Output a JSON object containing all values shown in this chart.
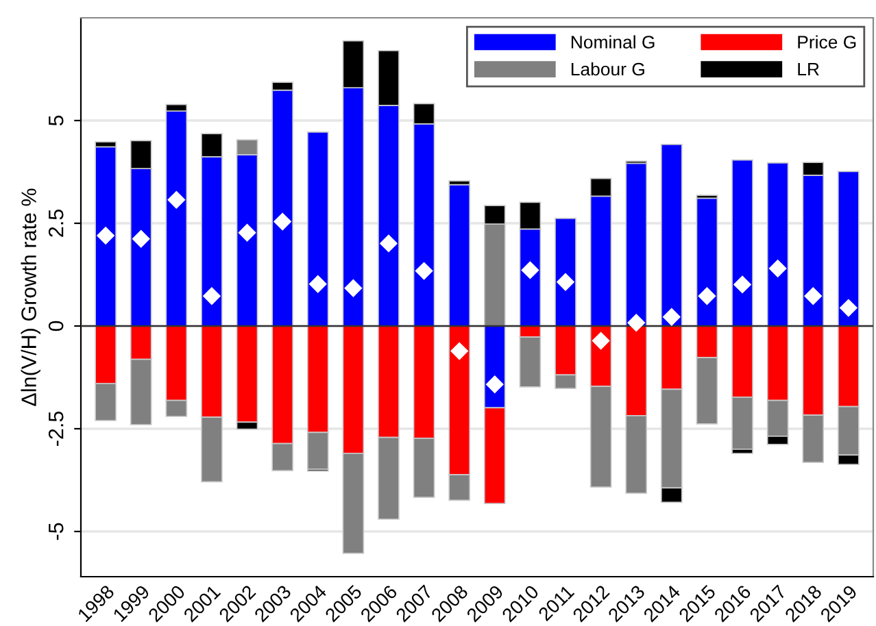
{
  "chart_data": {
    "type": "bar",
    "stacked": true,
    "ylabel": "Δln(V/H) Growth rate %",
    "categories": [
      "1998",
      "1999",
      "2000",
      "2001",
      "2002",
      "2003",
      "2004",
      "2005",
      "2006",
      "2007",
      "2008",
      "2009",
      "2010",
      "2011",
      "2012",
      "2013",
      "2014",
      "2015",
      "2016",
      "2017",
      "2018",
      "2019"
    ],
    "series": [
      {
        "name": "Nominal G",
        "color": "#0000ff",
        "values": [
          4.36,
          3.83,
          5.23,
          4.12,
          4.17,
          5.74,
          4.72,
          5.8,
          5.37,
          4.92,
          3.44,
          -1.99,
          2.36,
          2.62,
          3.16,
          3.96,
          4.42,
          3.11,
          4.04,
          3.97,
          3.67,
          3.76
        ]
      },
      {
        "name": "Price G",
        "color": "#ff0000",
        "values": [
          -1.4,
          -0.81,
          -1.81,
          -2.22,
          -2.34,
          -2.86,
          -2.59,
          -3.1,
          -2.71,
          -2.73,
          -3.62,
          -2.33,
          -0.27,
          -1.19,
          -1.47,
          -2.18,
          -1.54,
          -0.77,
          -1.73,
          -1.81,
          -2.17,
          -1.96
        ]
      },
      {
        "name": "Labour G",
        "color": "#808080",
        "values": [
          -0.9,
          -1.59,
          -0.39,
          -1.57,
          0.36,
          -0.66,
          -0.9,
          -2.43,
          -1.99,
          -1.44,
          -0.62,
          2.48,
          -1.21,
          -0.33,
          -2.45,
          -1.89,
          -2.4,
          -1.61,
          -1.27,
          -0.87,
          -1.15,
          -1.18
        ]
      },
      {
        "name": "LR",
        "color": "#000000",
        "values": [
          0.12,
          0.68,
          0.16,
          0.56,
          -0.17,
          0.19,
          -0.04,
          1.14,
          1.33,
          0.49,
          0.09,
          0.45,
          0.65,
          null,
          0.43,
          0.05,
          -0.35,
          0.07,
          -0.1,
          -0.2,
          0.31,
          -0.23
        ]
      },
      {
        "type": "scatter",
        "color": "#ffffff",
        "marker": "diamond",
        "values": [
          2.2,
          2.12,
          3.07,
          0.73,
          2.27,
          2.54,
          1.02,
          0.92,
          2.01,
          1.34,
          -0.61,
          -1.42,
          1.36,
          1.07,
          -0.36,
          0.08,
          0.22,
          0.73,
          1.01,
          1.4,
          0.73,
          0.44
        ]
      }
    ],
    "ylim": [
      -6.1,
      7.5
    ],
    "yticks": [
      -5,
      -2.5,
      0,
      2.5,
      5
    ],
    "grid": "y",
    "legend": "top right"
  }
}
